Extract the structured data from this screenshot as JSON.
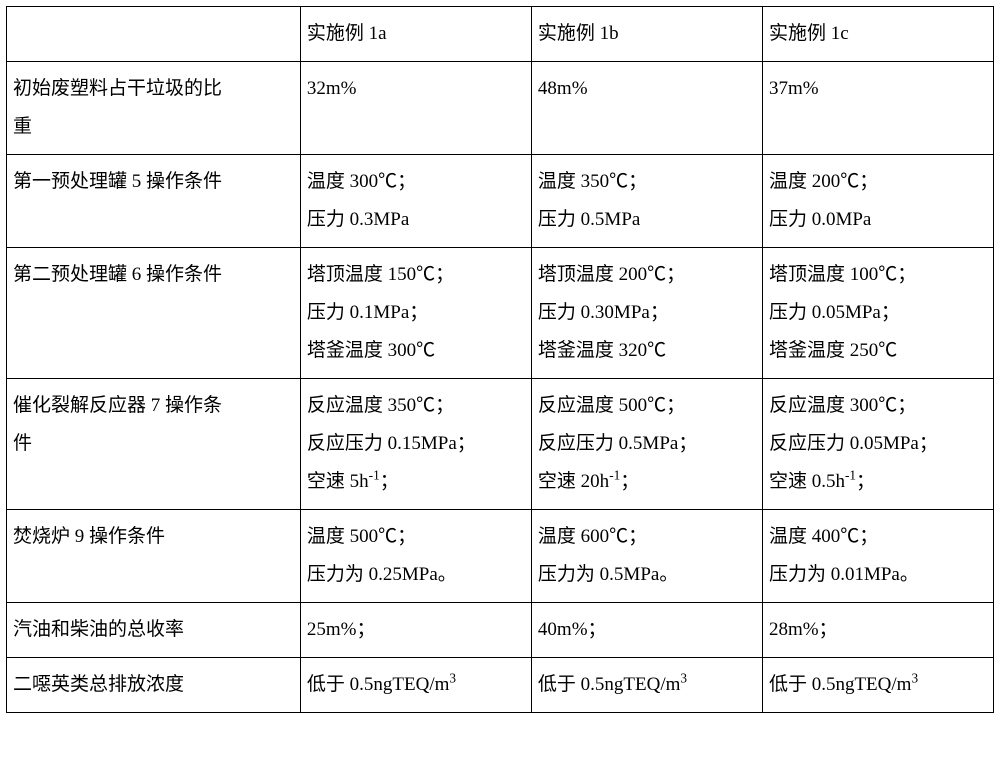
{
  "table": {
    "header": {
      "label": "",
      "c1": "实施例 1a",
      "c2": "实施例 1b",
      "c3": "实施例 1c"
    },
    "rows": [
      {
        "label": [
          "初始废塑料占干垃圾的比",
          "重"
        ],
        "c1": [
          "32m%"
        ],
        "c2": [
          "48m%"
        ],
        "c3": [
          "37m%"
        ]
      },
      {
        "label": [
          "第一预处理罐 5 操作条件"
        ],
        "c1": [
          "温度 300℃；",
          "压力 0.3MPa"
        ],
        "c2": [
          "温度 350℃；",
          "压力 0.5MPa"
        ],
        "c3": [
          "温度 200℃；",
          "压力 0.0MPa"
        ]
      },
      {
        "label": [
          "第二预处理罐 6 操作条件"
        ],
        "c1": [
          "塔顶温度 150℃；",
          "压力 0.1MPa；",
          "塔釜温度 300℃"
        ],
        "c2": [
          "塔顶温度 200℃；",
          "压力 0.30MPa；",
          "塔釜温度 320℃"
        ],
        "c3": [
          "塔顶温度 100℃；",
          "压力 0.05MPa；",
          "塔釜温度 250℃"
        ]
      },
      {
        "label": [
          "催化裂解反应器 7 操作条",
          "件"
        ],
        "c1": [
          "反应温度 350℃；",
          "反应压力 0.15MPa；",
          "空速 5h<sup>-1</sup>；"
        ],
        "c2": [
          "反应温度 500℃；",
          "反应压力 0.5MPa；",
          "空速 20h<sup>-1</sup>；"
        ],
        "c3": [
          "反应温度 300℃；",
          "反应压力 0.05MPa；",
          "空速 0.5h<sup>-1</sup>；"
        ]
      },
      {
        "label": [
          "焚烧炉 9 操作条件"
        ],
        "c1": [
          "温度 500℃；",
          "压力为 0.25MPa。"
        ],
        "c2": [
          "温度 600℃；",
          "压力为 0.5MPa。"
        ],
        "c3": [
          "温度 400℃；",
          "压力为 0.01MPa。"
        ]
      },
      {
        "label": [
          "汽油和柴油的总收率"
        ],
        "c1": [
          "25m%；"
        ],
        "c2": [
          "40m%；"
        ],
        "c3": [
          "28m%；"
        ]
      },
      {
        "label": [
          "二噁英类总排放浓度"
        ],
        "c1": [
          "低于 0.5ngTEQ/m<sup>3</sup>"
        ],
        "c2": [
          "低于 0.5ngTEQ/m<sup>3</sup>"
        ],
        "c3": [
          "低于 0.5ngTEQ/m<sup>3</sup>"
        ]
      }
    ]
  },
  "style": {
    "background_color": "#ffffff",
    "text_color": "#000000",
    "border_color": "#000000",
    "font_family": "SimSun",
    "font_size_pt": 14,
    "line_height": 2.0,
    "col_widths_pct": [
      30,
      23.3,
      23.3,
      23.3
    ]
  }
}
